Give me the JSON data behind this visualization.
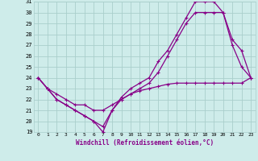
{
  "bg_color": "#ceecea",
  "grid_color": "#aacfcc",
  "line_color": "#880088",
  "marker": "+",
  "xlabel": "Windchill (Refroidissement éolien,°C)",
  "xlim": [
    -0.5,
    23.5
  ],
  "ylim": [
    19,
    31
  ],
  "yticks": [
    19,
    20,
    21,
    22,
    23,
    24,
    25,
    26,
    27,
    28,
    29,
    30,
    31
  ],
  "xticks": [
    0,
    1,
    2,
    3,
    4,
    5,
    6,
    7,
    8,
    9,
    10,
    11,
    12,
    13,
    14,
    15,
    16,
    17,
    18,
    19,
    20,
    21,
    22,
    23
  ],
  "line1_x": [
    0,
    1,
    2,
    3,
    4,
    5,
    6,
    7,
    8,
    9,
    10,
    11,
    12,
    13,
    14,
    15,
    16,
    17,
    18,
    19,
    20,
    21,
    22,
    23
  ],
  "line1_y": [
    24,
    23,
    22,
    21.5,
    21,
    20.5,
    20,
    19,
    21,
    22.2,
    23,
    23.5,
    24,
    25.5,
    26.5,
    28,
    29.5,
    31,
    31,
    31,
    30,
    27,
    25,
    24
  ],
  "line2_x": [
    0,
    1,
    2,
    3,
    4,
    5,
    6,
    7,
    8,
    9,
    10,
    11,
    12,
    13,
    14,
    15,
    16,
    17,
    18,
    19,
    20,
    21,
    22,
    23
  ],
  "line2_y": [
    24,
    23,
    22,
    21.5,
    21,
    20.5,
    20,
    19.5,
    21,
    22,
    22.5,
    23,
    23.5,
    24.5,
    26,
    27.5,
    29,
    30,
    30,
    30,
    30,
    27.5,
    26.5,
    24
  ],
  "line3_x": [
    0,
    1,
    2,
    3,
    4,
    5,
    6,
    7,
    8,
    9,
    10,
    11,
    12,
    13,
    14,
    15,
    16,
    17,
    18,
    19,
    20,
    21,
    22,
    23
  ],
  "line3_y": [
    24,
    23,
    22.5,
    22,
    21.5,
    21.5,
    21,
    21,
    21.5,
    22,
    22.5,
    22.8,
    23,
    23.2,
    23.4,
    23.5,
    23.5,
    23.5,
    23.5,
    23.5,
    23.5,
    23.5,
    23.5,
    24
  ]
}
